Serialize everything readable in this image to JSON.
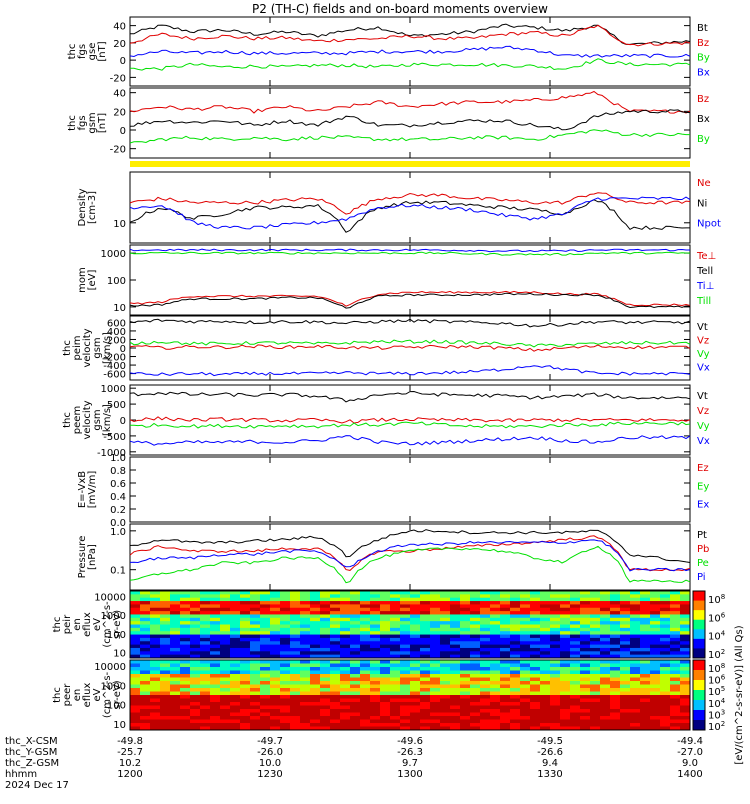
{
  "title": "P2 (TH-C) fields and on-board moments overview",
  "colors": {
    "black": "#000000",
    "red": "#e00000",
    "green": "#00e000",
    "blue": "#0000ff",
    "yellow": "#ffee00"
  },
  "chart_data": [
    {
      "type": "line",
      "panel": "fgs_total",
      "ylabel": [
        "thc",
        "fgs",
        "gse",
        "[nT]"
      ],
      "ylim": [
        -30,
        50
      ],
      "yticks": [
        "40",
        "20",
        "0",
        "-20"
      ],
      "series": [
        {
          "name": "Bt",
          "color": "black",
          "values": [
            30,
            40,
            33,
            35,
            30,
            33,
            28,
            35,
            38,
            28,
            30,
            33,
            40,
            38,
            34,
            40,
            18,
            20,
            22
          ]
        },
        {
          "name": "Bz",
          "color": "red",
          "values": [
            20,
            30,
            25,
            28,
            25,
            26,
            22,
            24,
            25,
            28,
            25,
            25,
            30,
            32,
            28,
            40,
            18,
            19,
            20
          ]
        },
        {
          "name": "By",
          "color": "green",
          "values": [
            -10,
            -10,
            -5,
            -8,
            -7,
            -8,
            -6,
            -6,
            -8,
            -5,
            -5,
            -5,
            -6,
            -7,
            -10,
            0,
            -5,
            -5,
            -5
          ]
        },
        {
          "name": "Bx",
          "color": "blue",
          "values": [
            5,
            10,
            8,
            10,
            8,
            8,
            8,
            8,
            10,
            10,
            10,
            12,
            15,
            12,
            5,
            5,
            5,
            5,
            5
          ]
        }
      ]
    },
    {
      "type": "line",
      "panel": "fgs_gsm",
      "ylabel": [
        "thc",
        "fgs",
        "gsm",
        "[nT]"
      ],
      "ylim": [
        -30,
        45
      ],
      "yticks": [
        "40",
        "20",
        "0",
        "-20"
      ],
      "series": [
        {
          "name": "Bz",
          "color": "red",
          "values": [
            20,
            25,
            22,
            25,
            20,
            25,
            20,
            25,
            30,
            25,
            28,
            30,
            30,
            32,
            35,
            40,
            20,
            20,
            20
          ]
        },
        {
          "name": "Bx",
          "color": "black",
          "values": [
            5,
            10,
            8,
            10,
            5,
            10,
            5,
            15,
            5,
            5,
            8,
            10,
            10,
            5,
            0,
            15,
            20,
            20,
            20
          ]
        },
        {
          "name": "By",
          "color": "green",
          "values": [
            -15,
            -10,
            -8,
            -10,
            -8,
            -10,
            -8,
            -8,
            -10,
            -10,
            -10,
            -8,
            -8,
            -10,
            -5,
            0,
            -5,
            -5,
            -5
          ]
        }
      ]
    },
    {
      "type": "line",
      "panel": "density",
      "ylog": true,
      "ylabel": [
        "Density",
        "[cm-3]"
      ],
      "ylim": [
        4,
        100
      ],
      "yticks": [
        "10"
      ],
      "series": [
        {
          "name": "Ne",
          "color": "red",
          "values": [
            25,
            30,
            25,
            25,
            25,
            28,
            30,
            15,
            30,
            35,
            35,
            30,
            28,
            25,
            25,
            40,
            25,
            25,
            25
          ]
        },
        {
          "name": "Ni",
          "color": "black",
          "values": [
            10,
            20,
            12,
            15,
            20,
            20,
            22,
            6,
            20,
            25,
            25,
            22,
            20,
            18,
            15,
            28,
            8,
            8,
            8
          ]
        },
        {
          "name": "Npot",
          "color": "blue",
          "values": [
            20,
            22,
            10,
            8,
            8,
            9,
            10,
            12,
            20,
            22,
            20,
            18,
            14,
            12,
            15,
            30,
            30,
            30,
            30
          ]
        }
      ]
    },
    {
      "type": "line",
      "panel": "mom_temp",
      "ylog": true,
      "ylabel": [
        "mom",
        "[eV]"
      ],
      "ylim": [
        5,
        2000
      ],
      "yticks": [
        "1000",
        "100",
        "10"
      ],
      "series": [
        {
          "name": "Te⊥",
          "color": "red",
          "values": [
            13,
            15,
            25,
            25,
            25,
            25,
            25,
            10,
            30,
            35,
            35,
            35,
            35,
            35,
            30,
            30,
            12,
            12,
            12
          ]
        },
        {
          "name": "Tell",
          "color": "black",
          "values": [
            11,
            12,
            20,
            20,
            20,
            22,
            22,
            8,
            25,
            28,
            28,
            28,
            30,
            30,
            28,
            28,
            10,
            10,
            10
          ]
        },
        {
          "name": "Ti⊥",
          "color": "blue",
          "values": [
            1300,
            1300,
            1300,
            1300,
            1300,
            1300,
            1300,
            1300,
            1300,
            1300,
            1300,
            1250,
            1200,
            1200,
            1200,
            1300,
            1300,
            1300,
            1300
          ]
        },
        {
          "name": "Till",
          "color": "green",
          "values": [
            1000,
            1000,
            1000,
            1000,
            1000,
            1000,
            1000,
            1000,
            1000,
            1000,
            1000,
            950,
            900,
            900,
            900,
            1000,
            1000,
            1000,
            1000
          ]
        }
      ]
    },
    {
      "type": "line",
      "panel": "peim_velocity",
      "ylabel": [
        "thc",
        "peim",
        "velocity",
        "gsm",
        "[km/s]"
      ],
      "ylim": [
        -750,
        750
      ],
      "yticks": [
        "600",
        "400",
        "200",
        "0",
        "-200",
        "-400",
        "-600"
      ],
      "series": [
        {
          "name": "Vt",
          "color": "black",
          "values": [
            600,
            650,
            620,
            630,
            600,
            620,
            610,
            580,
            620,
            640,
            620,
            600,
            580,
            520,
            560,
            620,
            600,
            600,
            600
          ]
        },
        {
          "name": "Vz",
          "color": "red",
          "values": [
            50,
            0,
            30,
            20,
            40,
            20,
            40,
            10,
            0,
            20,
            30,
            30,
            0,
            -50,
            0,
            40,
            20,
            20,
            20
          ]
        },
        {
          "name": "Vy",
          "color": "green",
          "values": [
            100,
            150,
            100,
            100,
            120,
            120,
            100,
            120,
            150,
            150,
            150,
            120,
            100,
            50,
            80,
            100,
            120,
            120,
            120
          ]
        },
        {
          "name": "Vx",
          "color": "blue",
          "values": [
            -600,
            -620,
            -600,
            -620,
            -600,
            -600,
            -600,
            -580,
            -600,
            -600,
            -580,
            -560,
            -500,
            -400,
            -500,
            -600,
            -600,
            -600,
            -600
          ]
        }
      ]
    },
    {
      "type": "line",
      "panel": "peem_velocity",
      "ylabel": [
        "thc",
        "peem",
        "velocity",
        "gsm",
        "[km/s]"
      ],
      "ylim": [
        -1100,
        1100
      ],
      "yticks": [
        "1000",
        "500",
        "0",
        "-500",
        "-1000"
      ],
      "series": [
        {
          "name": "Vt",
          "color": "black",
          "values": [
            800,
            850,
            800,
            800,
            780,
            800,
            750,
            600,
            800,
            850,
            800,
            780,
            760,
            700,
            750,
            800,
            700,
            700,
            700
          ]
        },
        {
          "name": "Vz",
          "color": "red",
          "values": [
            0,
            50,
            0,
            20,
            0,
            -20,
            0,
            -50,
            0,
            20,
            0,
            0,
            -20,
            0,
            0,
            0,
            0,
            0,
            0
          ]
        },
        {
          "name": "Vy",
          "color": "green",
          "values": [
            -200,
            -150,
            -200,
            -180,
            -200,
            -180,
            -200,
            -150,
            -150,
            -100,
            -150,
            -200,
            -200,
            -200,
            -150,
            -150,
            -100,
            -100,
            -100
          ]
        },
        {
          "name": "Vx",
          "color": "blue",
          "values": [
            -700,
            -750,
            -700,
            -700,
            -680,
            -700,
            -650,
            -500,
            -700,
            -750,
            -700,
            -650,
            -600,
            -550,
            -650,
            -700,
            -550,
            -550,
            -550
          ]
        }
      ]
    },
    {
      "type": "line",
      "panel": "efield",
      "ylabel": [
        "E=-VxB",
        "[mV/m]"
      ],
      "ylim": [
        0,
        1
      ],
      "yticks": [
        "1.0",
        "0.8",
        "0.6",
        "0.4",
        "0.2",
        "0.0"
      ],
      "series": [
        {
          "name": "Ez",
          "color": "red",
          "values": []
        },
        {
          "name": "Ey",
          "color": "green",
          "values": []
        },
        {
          "name": "Ex",
          "color": "blue",
          "values": []
        }
      ]
    },
    {
      "type": "line",
      "panel": "pressure",
      "ylog": true,
      "ylabel": [
        "Pressure",
        "[nPa]"
      ],
      "ylim": [
        0.03,
        1.5
      ],
      "yticks": [
        "1.0",
        "0.1"
      ],
      "series": [
        {
          "name": "Pt",
          "color": "black",
          "values": [
            0.4,
            0.6,
            0.5,
            0.5,
            0.55,
            0.6,
            0.7,
            0.2,
            0.6,
            1.0,
            1.0,
            0.9,
            0.9,
            0.9,
            0.9,
            1.0,
            0.25,
            0.2,
            0.15
          ]
        },
        {
          "name": "Pb",
          "color": "red",
          "values": [
            0.25,
            0.4,
            0.3,
            0.3,
            0.3,
            0.35,
            0.35,
            0.08,
            0.3,
            0.3,
            0.35,
            0.4,
            0.45,
            0.5,
            0.6,
            0.7,
            0.1,
            0.1,
            0.1
          ]
        },
        {
          "name": "Pe",
          "color": "green",
          "values": [
            0.05,
            0.08,
            0.1,
            0.15,
            0.15,
            0.2,
            0.2,
            0.04,
            0.2,
            0.3,
            0.35,
            0.35,
            0.3,
            0.2,
            0.15,
            0.4,
            0.05,
            0.05,
            0.05
          ]
        },
        {
          "name": "Pi",
          "color": "blue",
          "values": [
            0.15,
            0.2,
            0.2,
            0.25,
            0.25,
            0.3,
            0.3,
            0.1,
            0.3,
            0.45,
            0.45,
            0.5,
            0.5,
            0.5,
            0.5,
            0.6,
            0.1,
            0.1,
            0.1
          ]
        }
      ]
    },
    {
      "type": "heatmap",
      "panel": "peir_eflux",
      "ylog": true,
      "ylabel": [
        "thc",
        "peir",
        "en",
        "eflux",
        "eV",
        "(cm^2-s-",
        "sr-eV)"
      ],
      "ylim": [
        5,
        20000
      ],
      "yticks": [
        "10000",
        "1000",
        "100",
        "10"
      ],
      "colorbar": {
        "ticks": [
          "10^8",
          "10^6",
          "10^4",
          "10^2"
        ]
      }
    },
    {
      "type": "heatmap",
      "panel": "peer_eflux",
      "ylog": true,
      "ylabel": [
        "thc",
        "peer",
        "en",
        "eflux",
        "eV",
        "(cm^2-s-",
        "sr-eV)"
      ],
      "ylim": [
        5,
        20000
      ],
      "yticks": [
        "10000",
        "1000",
        "100",
        "10"
      ],
      "colorbar": {
        "ticks": [
          "10^8",
          "10^6",
          "10^5",
          "10^4",
          "10^3",
          "10^2"
        ]
      }
    }
  ],
  "colorbar_label": "[eV/(cm^2-s-sr-eV)] (All Qs)",
  "xaxis": {
    "rows": [
      {
        "label": "thc_X-CSM",
        "values": [
          "-49.8",
          "-49.7",
          "-49.6",
          "-49.5",
          "-49.4"
        ]
      },
      {
        "label": "thc_Y-GSM",
        "values": [
          "-25.7",
          "-26.0",
          "-26.3",
          "-26.6",
          "-27.0"
        ]
      },
      {
        "label": "thc_Z-GSM",
        "values": [
          "10.2",
          "10.0",
          "9.7",
          "9.4",
          "9.0"
        ]
      },
      {
        "label": "hhmm",
        "values": [
          "1200",
          "1230",
          "1300",
          "1330",
          "1400"
        ]
      }
    ],
    "date": "2024 Dec 17"
  }
}
